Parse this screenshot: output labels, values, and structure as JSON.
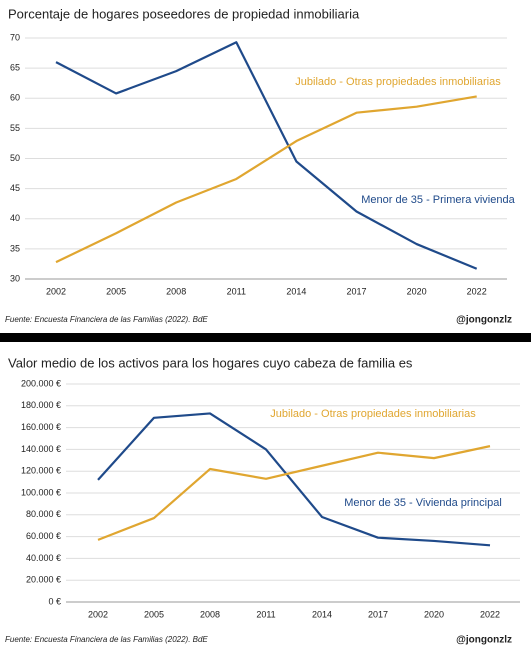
{
  "chart_data": [
    {
      "type": "line",
      "title": "Porcentaje de hogares poseedores de propiedad inmobiliaria",
      "categories": [
        "2002",
        "2005",
        "2008",
        "2011",
        "2014",
        "2017",
        "2020",
        "2022"
      ],
      "series": [
        {
          "name": "Menor de 35 - Primera vivienda",
          "color": "#1f4a8a",
          "values": [
            66,
            60.8,
            64.5,
            69.3,
            49.5,
            41.2,
            35.8,
            31.7
          ]
        },
        {
          "name": "Jubilado - Otras propiedades inmobiliarias",
          "color": "#e0a630",
          "values": [
            32.8,
            37.6,
            42.7,
            46.6,
            52.9,
            57.6,
            58.6,
            60.3
          ]
        }
      ],
      "ylim": [
        30,
        70
      ],
      "yticks": [
        30,
        35,
        40,
        45,
        50,
        55,
        60,
        65,
        70
      ],
      "grid": true,
      "source": "Fuente: Encuesta Financiera de las Familias (2022). BdE",
      "handle": "@jongonzlz"
    },
    {
      "type": "line",
      "title": "Valor medio de los activos para los hogares cuyo cabeza de familia es",
      "categories": [
        "2002",
        "2005",
        "2008",
        "2011",
        "2014",
        "2017",
        "2020",
        "2022"
      ],
      "series": [
        {
          "name": "Menor de 35 - Vivienda principal",
          "color": "#1f4a8a",
          "values": [
            112000,
            169000,
            173000,
            140000,
            78000,
            59000,
            56000,
            52000
          ]
        },
        {
          "name": "Jubilado - Otras propiedades inmobiliarias",
          "color": "#e0a630",
          "values": [
            57000,
            77000,
            122000,
            113000,
            125000,
            137000,
            132000,
            143000
          ]
        }
      ],
      "ylim": [
        0,
        200000
      ],
      "yticks": [
        {
          "value": 0,
          "label": "0 €"
        },
        {
          "value": 20000,
          "label": "20.000 €"
        },
        {
          "value": 40000,
          "label": "40.000 €"
        },
        {
          "value": 60000,
          "label": "60.000 €"
        },
        {
          "value": 80000,
          "label": "80.000 €"
        },
        {
          "value": 100000,
          "label": "100.000 €"
        },
        {
          "value": 120000,
          "label": "120.000 €"
        },
        {
          "value": 140000,
          "label": "140.000 €"
        },
        {
          "value": 160000,
          "label": "160.000 €"
        },
        {
          "value": 180000,
          "label": "180.000 €"
        },
        {
          "value": 200000,
          "label": "200.000 €"
        }
      ],
      "grid": true,
      "source": "Fuente: Encuesta Financiera de las Familias (2022). BdE",
      "handle": "@jongonzlz"
    }
  ]
}
